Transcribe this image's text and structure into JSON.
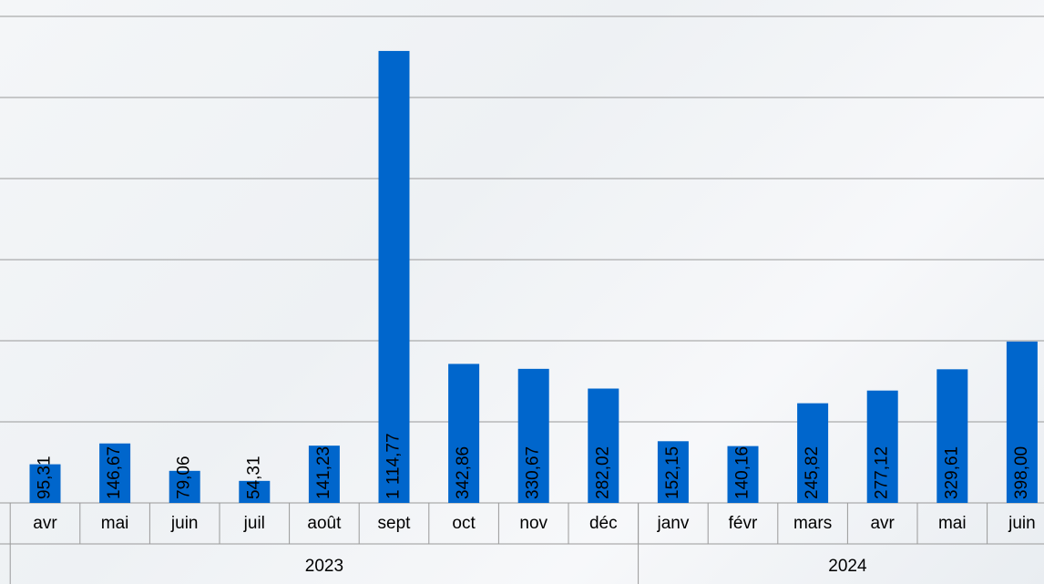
{
  "chart_data": {
    "type": "bar",
    "categories": [
      "avr",
      "mai",
      "juin",
      "juil",
      "août",
      "sept",
      "oct",
      "nov",
      "déc",
      "janv",
      "févr",
      "mars",
      "avr",
      "mai",
      "juin"
    ],
    "groups": [
      {
        "label": "2023",
        "count": 9
      },
      {
        "label": "2024",
        "count": 6
      }
    ],
    "values": [
      95.31,
      146.67,
      79.06,
      54.31,
      141.23,
      1114.77,
      342.86,
      330.67,
      282.02,
      152.15,
      140.16,
      245.82,
      277.12,
      329.61,
      398.0
    ],
    "value_labels": [
      "95,31",
      "146,67",
      "79,06",
      "54,31",
      "141,23",
      "1 114,77",
      "342,86",
      "330,67",
      "282,02",
      "152,15",
      "140,16",
      "245,82",
      "277,12",
      "329,61",
      "398,00"
    ],
    "color": "#0066cc",
    "ylim": [
      0,
      1200
    ],
    "yticks": [
      0,
      200,
      400,
      600,
      800,
      1000,
      1200
    ],
    "grid": true
  }
}
